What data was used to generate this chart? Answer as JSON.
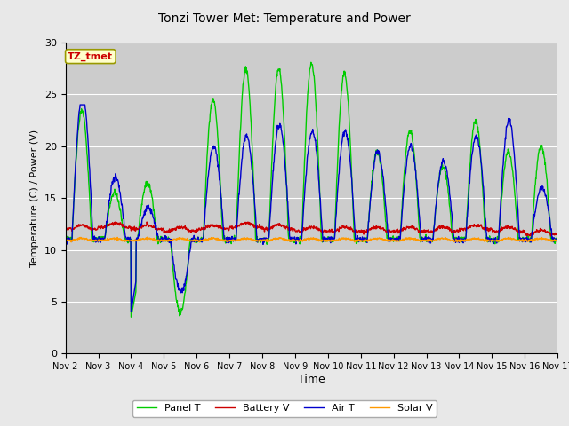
{
  "title": "Tonzi Tower Met: Temperature and Power",
  "xlabel": "Time",
  "ylabel": "Temperature (C) / Power (V)",
  "annotation_text": "TZ_tmet",
  "annotation_color": "#cc0000",
  "annotation_bg": "#ffffcc",
  "annotation_border": "#999900",
  "fig_bg_color": "#e8e8e8",
  "plot_bg_color": "#cccccc",
  "ylim": [
    0,
    30
  ],
  "yticks": [
    0,
    5,
    10,
    15,
    20,
    25,
    30
  ],
  "n_days": 15,
  "series": {
    "panel_t": {
      "color": "#00cc00",
      "label": "Panel T",
      "lw": 1.0
    },
    "battery_v": {
      "color": "#cc0000",
      "label": "Battery V",
      "lw": 1.0
    },
    "air_t": {
      "color": "#0000cc",
      "label": "Air T",
      "lw": 1.0
    },
    "solar_v": {
      "color": "#ff9900",
      "label": "Solar V",
      "lw": 1.0
    }
  },
  "legend_ncol": 4
}
